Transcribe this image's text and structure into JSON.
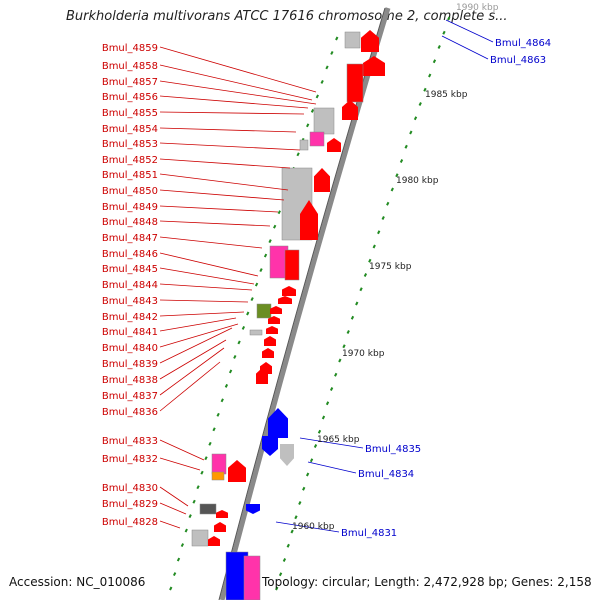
{
  "title": "Burkholderia multivorans ATCC 17616 chromosome 2, complete s...",
  "accession": "Accession: NC_010086",
  "summary": "Topology: circular; Length: 2,472,928 bp; Genes: 2,158",
  "colors": {
    "label_red": "#cc0000",
    "label_blue": "#0000cc",
    "gene_red": "#ff0000",
    "gene_blue": "#0000ff",
    "gene_pink": "#ff33aa",
    "gene_gray": "#bfbfbf",
    "gene_darkgray": "#555555",
    "gene_olive": "#6b8e23",
    "gene_orange": "#ff9900",
    "tick_green": "#228b22",
    "backbone": "#8a8a8a"
  },
  "kbp_labels": [
    "1990 kbp",
    "1985 kbp",
    "1980 kbp",
    "1975 kbp",
    "1970 kbp",
    "1965 kbp",
    "1960 kbp"
  ],
  "left_labels": [
    "Bmul_4859",
    "Bmul_4858",
    "Bmul_4857",
    "Bmul_4856",
    "Bmul_4855",
    "Bmul_4854",
    "Bmul_4853",
    "Bmul_4852",
    "Bmul_4851",
    "Bmul_4850",
    "Bmul_4849",
    "Bmul_4848",
    "Bmul_4847",
    "Bmul_4846",
    "Bmul_4845",
    "Bmul_4844",
    "Bmul_4843",
    "Bmul_4842",
    "Bmul_4841",
    "Bmul_4840",
    "Bmul_4839",
    "Bmul_4838",
    "Bmul_4837",
    "Bmul_4836",
    "Bmul_4833",
    "Bmul_4832",
    "Bmul_4830",
    "Bmul_4829",
    "Bmul_4828"
  ],
  "right_labels": [
    "Bmul_4864",
    "Bmul_4863",
    "Bmul_4835",
    "Bmul_4834",
    "Bmul_4831"
  ]
}
